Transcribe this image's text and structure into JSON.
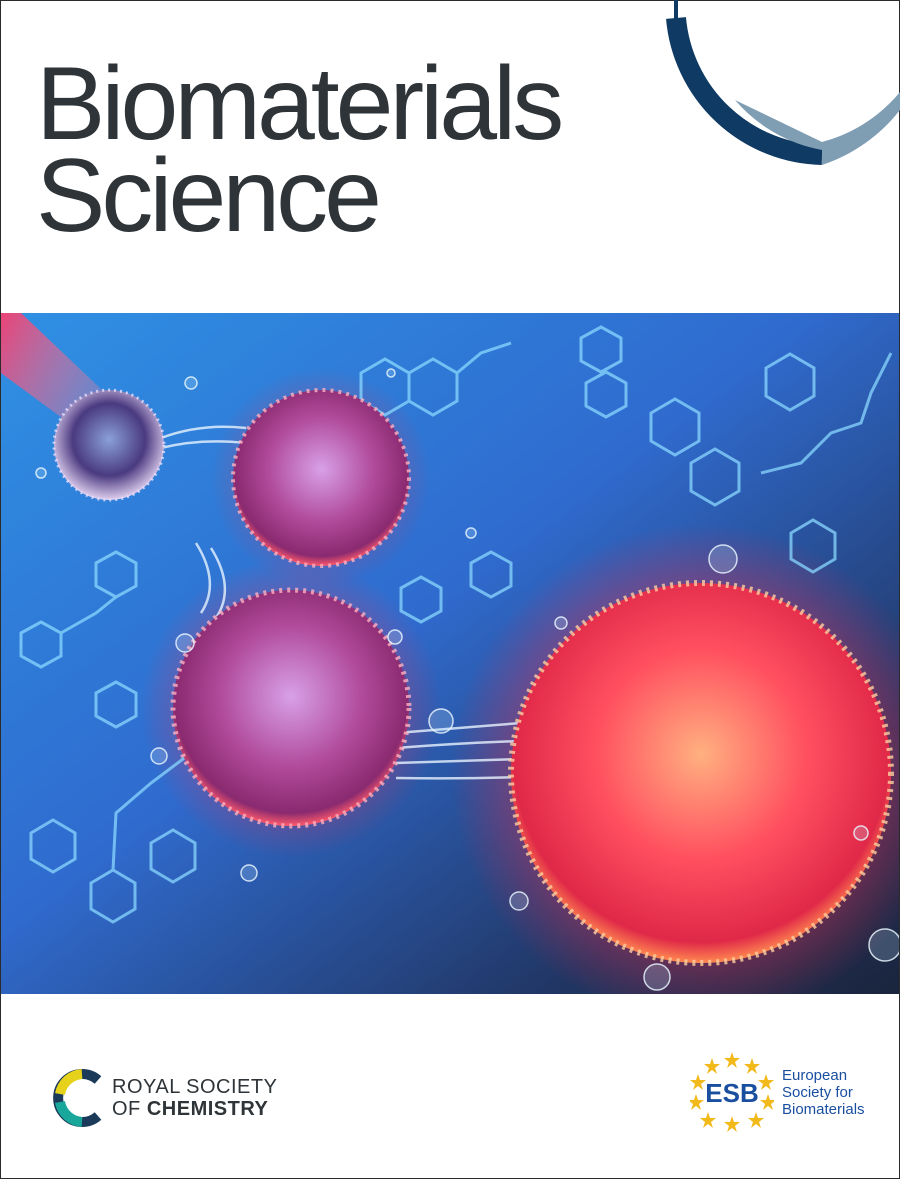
{
  "journal": {
    "title_line1": "Biomaterials",
    "title_line2": "Science"
  },
  "colors": {
    "title": "#2e3438",
    "arc_dark": "#0e3a63",
    "arc_light": "#7f9db3",
    "esb_blue": "#1a4fa0",
    "esb_star": "#f2b91a",
    "rsc_yellow": "#e6d21a",
    "rsc_teal": "#1aa79b",
    "rsc_dark": "#1b3a5a"
  },
  "cover_image": {
    "icon": "nanoparticle-illustration"
  },
  "publisher": {
    "line1": "ROYAL SOCIETY",
    "line2_prefix": "OF ",
    "line2_bold": "CHEMISTRY",
    "icon": "rsc-logo-icon"
  },
  "partner": {
    "logo_text": "ESB",
    "line1": "European",
    "line2": "Society for",
    "line3": "Biomaterials",
    "icon": "esb-logo-icon"
  }
}
